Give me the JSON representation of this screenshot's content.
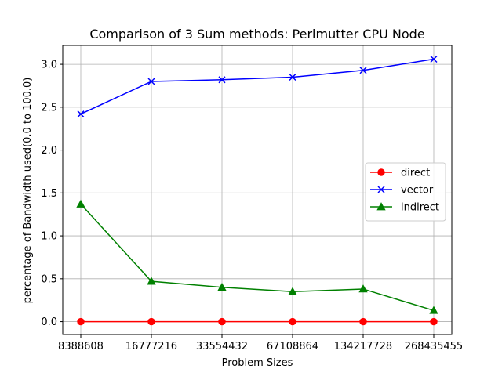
{
  "chart_data": {
    "type": "line",
    "title": "Comparison of 3 Sum methods: Perlmutter CPU Node",
    "xlabel": "Problem Sizes",
    "ylabel": "percentage of Bandwidth used(0.0 to 100.0)",
    "categories": [
      "8388608",
      "16777216",
      "33554432",
      "67108864",
      "134217728",
      "268435455"
    ],
    "yticks": [
      "0.0",
      "0.5",
      "1.0",
      "1.5",
      "2.0",
      "2.5",
      "3.0"
    ],
    "ylim": [
      -0.15,
      3.22
    ],
    "grid": true,
    "legend_position": "center-right",
    "series": [
      {
        "name": "direct",
        "color": "#ff0000",
        "marker": "circle",
        "values": [
          0.0,
          0.0,
          0.0,
          0.0,
          0.0,
          0.0
        ]
      },
      {
        "name": "vector",
        "color": "#0000ff",
        "marker": "x",
        "values": [
          2.42,
          2.8,
          2.82,
          2.85,
          2.93,
          3.06
        ]
      },
      {
        "name": "indirect",
        "color": "#008000",
        "marker": "triangle",
        "values": [
          1.37,
          0.47,
          0.4,
          0.35,
          0.38,
          0.13
        ]
      }
    ]
  }
}
